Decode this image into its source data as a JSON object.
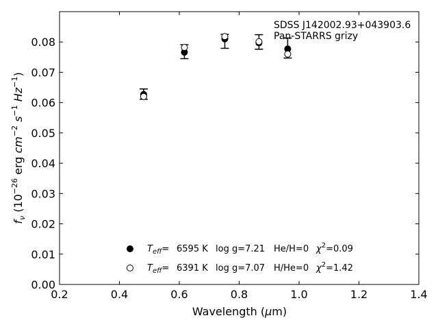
{
  "chart_data": {
    "type": "scatter",
    "xlabel": "Wavelength (μm)",
    "ylabel": "f_ν (10⁻²⁶ erg cm⁻² s⁻¹ Hz⁻¹)",
    "xlim": [
      0.2,
      1.4
    ],
    "ylim": [
      0.0,
      0.09
    ],
    "xticks": [
      0.2,
      0.4,
      0.6,
      0.8,
      1.0,
      1.2,
      1.4
    ],
    "xtick_labels": [
      "0.2",
      "0.4",
      "0.6",
      "0.8",
      "1.0",
      "1.2",
      "1.4"
    ],
    "yticks": [
      0.0,
      0.01,
      0.02,
      0.03,
      0.04,
      0.05,
      0.06,
      0.07,
      0.08
    ],
    "ytick_labels": [
      "0.00",
      "0.01",
      "0.02",
      "0.03",
      "0.04",
      "0.05",
      "0.06",
      "0.07",
      "0.08"
    ],
    "annotation": [
      "SDSS J142002.93+043903.6",
      "Pan-STARRS grizy"
    ],
    "grid": false,
    "legend_position": "lower-center",
    "observed": {
      "x": [
        0.481,
        0.617,
        0.752,
        0.866,
        0.962
      ],
      "y": [
        0.0628,
        0.0768,
        0.0802,
        0.08,
        0.078
      ],
      "yerr": [
        0.0017,
        0.0023,
        0.0023,
        0.0024,
        0.0033
      ]
    },
    "series": [
      {
        "marker": "filled-circle",
        "legend": {
          "teff": "6595 K",
          "logg": "log g=7.21",
          "comp": "He/H=0",
          "chi2": "=0.09"
        },
        "x": [
          0.481,
          0.617,
          0.752,
          0.866,
          0.962
        ],
        "y": [
          0.0627,
          0.0766,
          0.081,
          0.0797,
          0.0777
        ]
      },
      {
        "marker": "open-circle",
        "legend": {
          "teff": "6391 K",
          "logg": "log g=7.07",
          "comp": "H/He=0",
          "chi2": "=1.42"
        },
        "x": [
          0.481,
          0.617,
          0.752,
          0.866,
          0.962
        ],
        "y": [
          0.062,
          0.0782,
          0.0818,
          0.0801,
          0.076
        ]
      }
    ]
  }
}
